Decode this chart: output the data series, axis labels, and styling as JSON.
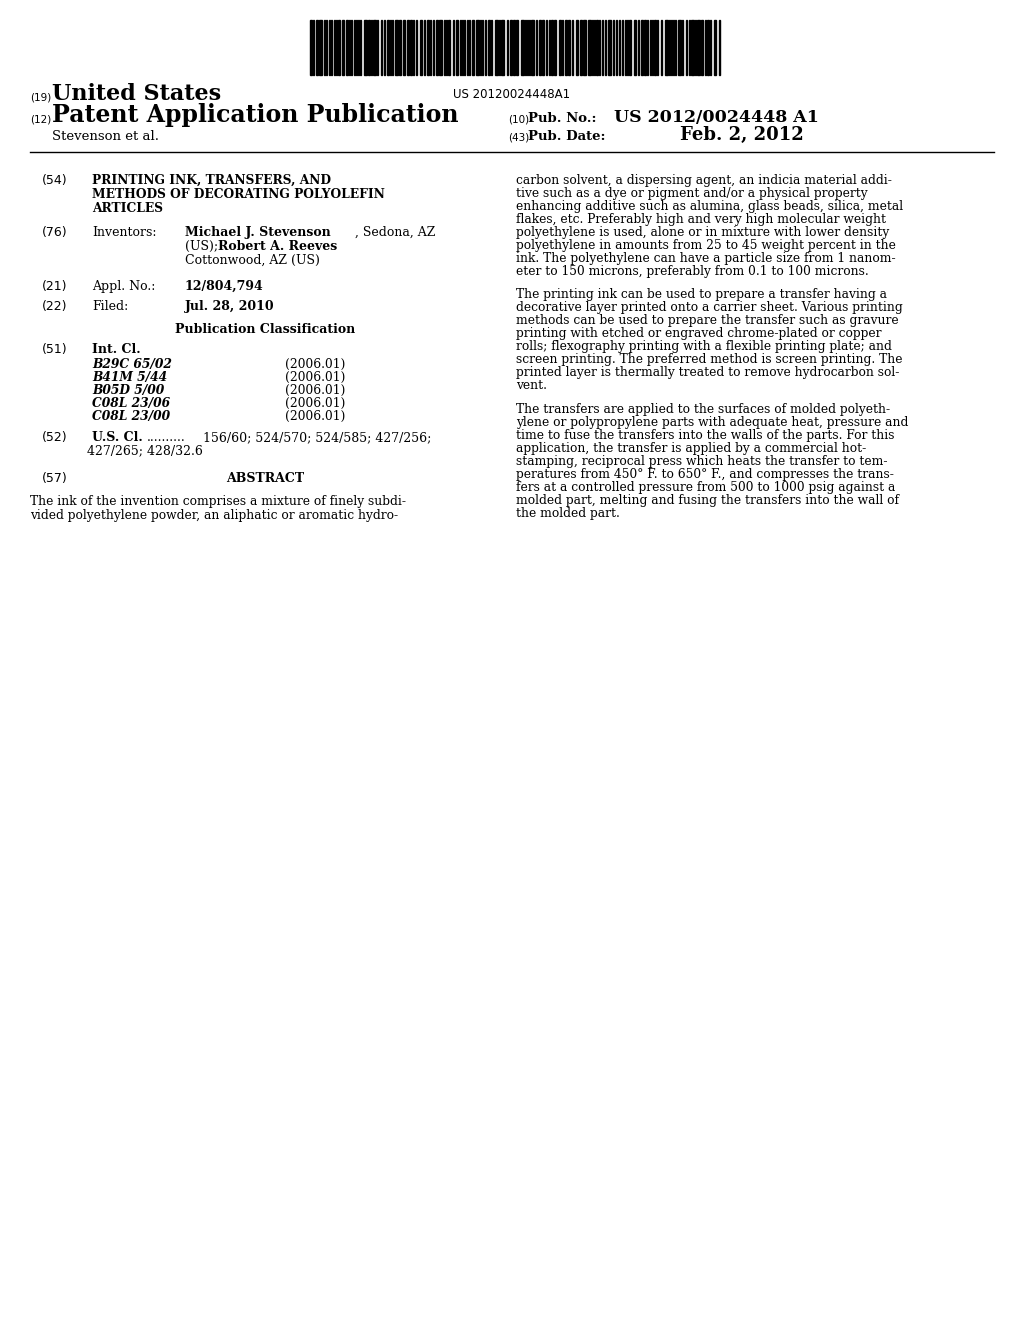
{
  "background_color": "#ffffff",
  "barcode_text": "US 20120024448A1",
  "int_cl_codes": [
    "B29C 65/02",
    "B41M 5/44",
    "B05D 5/00",
    "C08L 23/06",
    "C08L 23/00"
  ],
  "int_cl_years": [
    "(2006.01)",
    "(2006.01)",
    "(2006.01)",
    "(2006.01)",
    "(2006.01)"
  ],
  "right_col_text": "carbon solvent, a dispersing agent, an indicia material addi-\ntive such as a dye or pigment and/or a physical property\nenhancing additive such as alumina, glass beads, silica, metal\nflakes, etc. Preferably high and very high molecular weight\npolyethylene is used, alone or in mixture with lower density\npolyethylene in amounts from 25 to 45 weight percent in the\nink. The polyethylene can have a particle size from 1 nanom-\neter to 150 microns, preferably from 0.1 to 100 microns.\n\nThe printing ink can be used to prepare a transfer having a\ndecorative layer printed onto a carrier sheet. Various printing\nmethods can be used to prepare the transfer such as gravure\nprinting with etched or engraved chrome-plated or copper\nrolls; flexography printing with a flexible printing plate; and\nscreen printing. The preferred method is screen printing. The\nprinted layer is thermally treated to remove hydrocarbon sol-\nvent.\n\nThe transfers are applied to the surfaces of molded polyeth-\nylene or polypropylene parts with adequate heat, pressure and\ntime to fuse the transfers into the walls of the parts. For this\napplication, the transfer is applied by a commercial hot-\nstamping, reciprocal press which heats the transfer to tem-\nperatures from 450° F. to 650° F., and compresses the trans-\nfers at a controlled pressure from 500 to 1000 psig against a\nmolded part, melting and fusing the transfers into the wall of\nthe molded part."
}
